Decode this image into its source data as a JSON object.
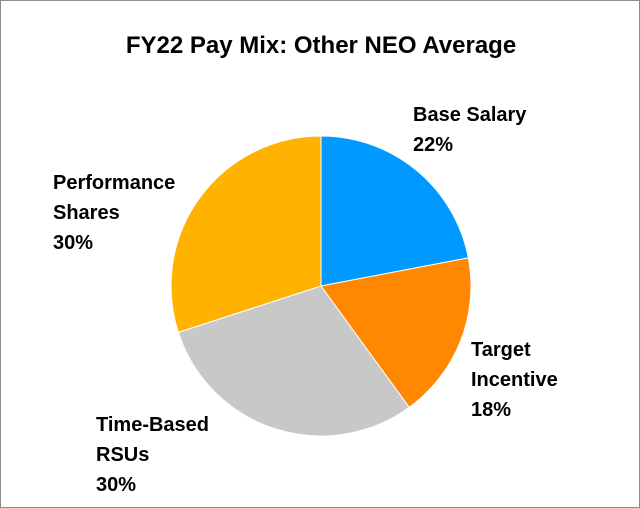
{
  "chart_data": {
    "type": "pie",
    "title": "FY22 Pay Mix: Other NEO Average",
    "slices": [
      {
        "label_lines": [
          "Base Salary"
        ],
        "value": 22,
        "value_label": "22%",
        "color": "#0099ff"
      },
      {
        "label_lines": [
          "Target",
          "Incentive"
        ],
        "value": 18,
        "value_label": "18%",
        "color": "#ff8800"
      },
      {
        "label_lines": [
          "Time-Based",
          "RSUs"
        ],
        "value": 30,
        "value_label": "30%",
        "color": "#c8c8c8"
      },
      {
        "label_lines": [
          "Performance",
          "Shares"
        ],
        "value": 30,
        "value_label": "30%",
        "color": "#ffb300"
      }
    ],
    "start_angle_deg": 0,
    "direction": "clockwise",
    "legend": "none"
  }
}
